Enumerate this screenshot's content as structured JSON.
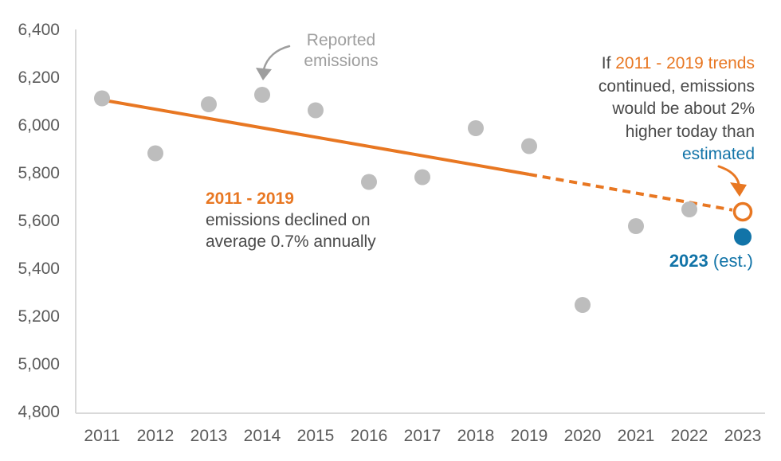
{
  "colors": {
    "accent_orange": "#E87722",
    "accent_blue": "#1274A8",
    "dot_gray": "#BDBDBD",
    "text_dark": "#4A4A4A",
    "text_light_gray": "#9E9E9E",
    "axis_text": "#5B5B5B",
    "axis_line": "#D9D9D9"
  },
  "chart_data": {
    "type": "scatter",
    "title": "",
    "xlabel": "",
    "ylabel": "",
    "ylim": [
      4800,
      6400
    ],
    "y_tick_step": 200,
    "y_tick_labels": [
      "6,400",
      "6,200",
      "6,000",
      "5,800",
      "5,600",
      "5,400",
      "5,200",
      "5,000",
      "4,800"
    ],
    "x_tick_labels": [
      "2011",
      "2012",
      "2013",
      "2014",
      "2015",
      "2016",
      "2017",
      "2018",
      "2019",
      "2020",
      "2021",
      "2022",
      "2023"
    ],
    "grid": false,
    "legend": "annotations instead of legend",
    "series": [
      {
        "name": "Reported emissions",
        "marker": "filled-gray-circle",
        "x": [
          2011,
          2012,
          2013,
          2014,
          2015,
          2016,
          2017,
          2018,
          2019,
          2020,
          2021,
          2022
        ],
        "values": [
          6115,
          5885,
          6090,
          6130,
          6065,
          5765,
          5785,
          5990,
          5915,
          5250,
          5580,
          5650
        ]
      },
      {
        "name": "2023 estimate",
        "marker": "filled-blue-circle",
        "x": [
          2023
        ],
        "values": [
          5535
        ]
      },
      {
        "name": "2011-2019 trend extended",
        "marker": "open-orange-circle",
        "x": [
          2023
        ],
        "values": [
          5640
        ]
      }
    ],
    "trend_line": {
      "start_year": 2011,
      "start_value": 6110,
      "solid_until_year": 2019,
      "end_year": 2023,
      "end_value": 5640,
      "style_after_solid": "dashed"
    }
  },
  "labels": {
    "reported": {
      "line1": "Reported",
      "line2": "emissions"
    },
    "trend_note": {
      "title": "2011 - 2019",
      "line2": "emissions declined on",
      "line3": "average 0.7% annually"
    },
    "projection": {
      "if_prefix": "If ",
      "trends": "2011 - 2019 trends",
      "line2": "continued, emissions",
      "line3": "would be about 2%",
      "line4": "higher today than",
      "line5": "estimated"
    },
    "estimate": {
      "year": "2023",
      "suffix": " (est.)"
    }
  }
}
